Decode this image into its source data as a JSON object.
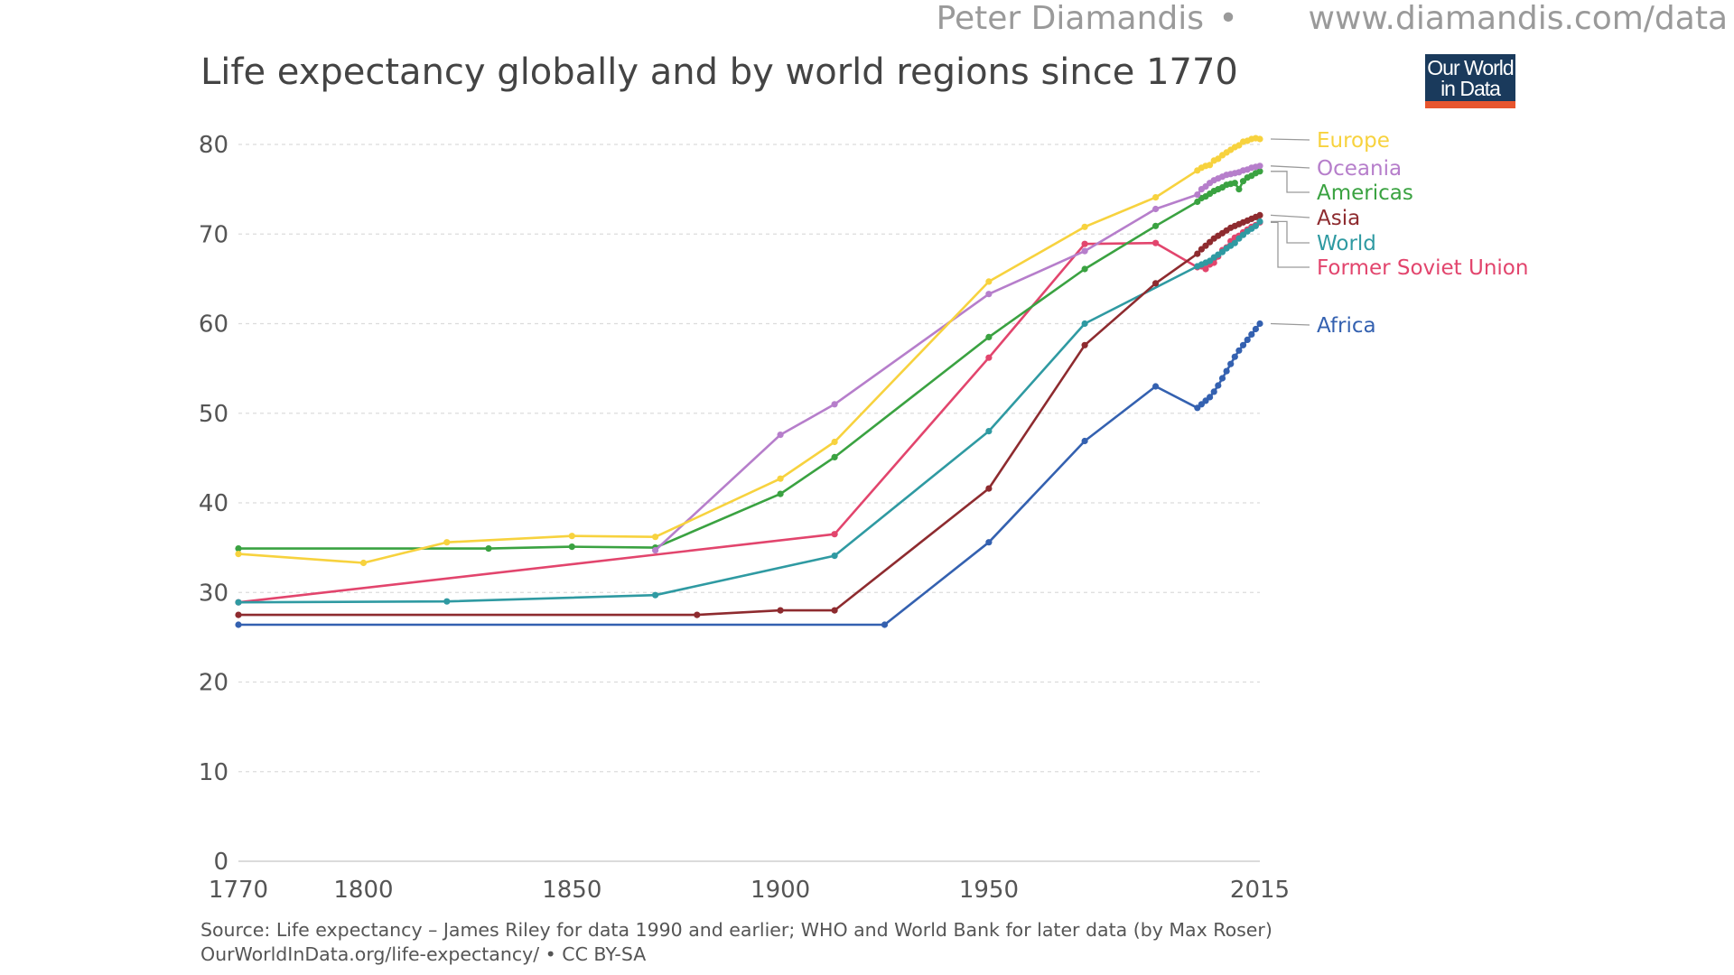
{
  "watermark": {
    "author": "Peter Diamandis",
    "separator": "•",
    "site": "www.diamandis.com/data"
  },
  "logo": {
    "line1": "Our World",
    "line2": "in Data",
    "bg_color": "#1a3a5c",
    "accent_color": "#e8552e"
  },
  "source": {
    "line1": "Source: Life expectancy – James Riley for data 1990 and earlier; WHO and World Bank for later data (by Max Roser)",
    "line2": "OurWorldInData.org/life-expectancy/ • CC BY-SA"
  },
  "chart_data": {
    "type": "line",
    "title": "Life expectancy globally and by world regions since 1770",
    "xlabel": "",
    "ylabel": "",
    "xlim": [
      1770,
      2015
    ],
    "ylim": [
      0,
      80
    ],
    "grid": "horizontal-dashed",
    "legend": "right, aligned with line ends",
    "x_ticks": [
      "1770",
      "1800",
      "1850",
      "1900",
      "1950",
      "2015"
    ],
    "y_ticks": [
      "0",
      "10",
      "20",
      "30",
      "40",
      "50",
      "60",
      "70",
      "80"
    ],
    "series": [
      {
        "name": "Europe",
        "color": "#f7d23e",
        "x": [
          1770,
          1800,
          1820,
          1850,
          1870,
          1900,
          1913,
          1950,
          1973,
          1990,
          2000,
          2001,
          2002,
          2003,
          2004,
          2005,
          2006,
          2007,
          2008,
          2009,
          2010,
          2011,
          2012,
          2013,
          2014,
          2015
        ],
        "y": [
          34.3,
          33.3,
          35.6,
          36.3,
          36.2,
          42.7,
          46.8,
          64.7,
          70.8,
          74.1,
          77.1,
          77.4,
          77.6,
          77.7,
          78.2,
          78.4,
          78.8,
          79.1,
          79.4,
          79.7,
          79.9,
          80.3,
          80.4,
          80.6,
          80.7,
          80.6
        ]
      },
      {
        "name": "Oceania",
        "color": "#b67ecb",
        "x": [
          1870,
          1900,
          1913,
          1950,
          1973,
          1990,
          2000,
          2001,
          2002,
          2003,
          2004,
          2005,
          2006,
          2007,
          2008,
          2009,
          2010,
          2011,
          2012,
          2013,
          2014,
          2015
        ],
        "y": [
          34.7,
          47.6,
          51.0,
          63.3,
          68.1,
          72.8,
          74.4,
          75.0,
          75.3,
          75.7,
          76.0,
          76.2,
          76.4,
          76.6,
          76.7,
          76.8,
          76.9,
          77.1,
          77.2,
          77.4,
          77.5,
          77.6
        ]
      },
      {
        "name": "Americas",
        "color": "#3aa241",
        "x": [
          1770,
          1830,
          1850,
          1870,
          1900,
          1913,
          1950,
          1973,
          1990,
          2000,
          2001,
          2002,
          2003,
          2004,
          2005,
          2006,
          2007,
          2008,
          2009,
          2010,
          2011,
          2012,
          2013,
          2014,
          2015
        ],
        "y": [
          34.9,
          34.9,
          35.1,
          35.0,
          41.0,
          45.1,
          58.5,
          66.1,
          70.9,
          73.6,
          74.0,
          74.2,
          74.5,
          74.8,
          75.0,
          75.2,
          75.5,
          75.6,
          75.7,
          75.0,
          75.9,
          76.3,
          76.5,
          76.8,
          77.0
        ]
      },
      {
        "name": "Asia",
        "color": "#8e2b2f",
        "x": [
          1770,
          1880,
          1900,
          1913,
          1950,
          1973,
          1990,
          2000,
          2001,
          2002,
          2003,
          2004,
          2005,
          2006,
          2007,
          2008,
          2009,
          2010,
          2011,
          2012,
          2013,
          2014,
          2015
        ],
        "y": [
          27.5,
          27.5,
          28.0,
          28.0,
          41.6,
          57.6,
          64.5,
          67.8,
          68.3,
          68.7,
          69.1,
          69.5,
          69.8,
          70.1,
          70.4,
          70.7,
          70.9,
          71.1,
          71.3,
          71.5,
          71.7,
          71.9,
          72.1
        ]
      },
      {
        "name": "World",
        "color": "#2f9aa2",
        "x": [
          1770,
          1820,
          1870,
          1913,
          1950,
          1973,
          2000,
          2001,
          2002,
          2003,
          2004,
          2005,
          2006,
          2007,
          2008,
          2009,
          2010,
          2011,
          2012,
          2013,
          2014,
          2015
        ],
        "y": [
          28.9,
          29.0,
          29.7,
          34.1,
          48.0,
          60.0,
          66.4,
          66.6,
          66.8,
          67.0,
          67.4,
          67.7,
          68.0,
          68.4,
          68.7,
          69.0,
          69.5,
          69.9,
          70.3,
          70.6,
          70.9,
          71.4
        ]
      },
      {
        "name": "Former Soviet Union",
        "color": "#e2456d",
        "x": [
          1770,
          1913,
          1950,
          1973,
          1990,
          2000,
          2001,
          2002,
          2003,
          2004,
          2005,
          2006,
          2007,
          2008,
          2009,
          2010,
          2011,
          2012,
          2013,
          2014,
          2015
        ],
        "y": [
          28.9,
          36.5,
          56.2,
          68.9,
          69.0,
          66.3,
          66.4,
          66.1,
          66.6,
          66.8,
          67.5,
          68.2,
          68.5,
          69.2,
          69.6,
          69.8,
          70.2,
          70.5,
          70.8,
          71.0,
          71.3
        ]
      },
      {
        "name": "Africa",
        "color": "#3461b0",
        "x": [
          1770,
          1925,
          1950,
          1973,
          1990,
          2000,
          2001,
          2002,
          2003,
          2004,
          2005,
          2006,
          2007,
          2008,
          2009,
          2010,
          2011,
          2012,
          2013,
          2014,
          2015
        ],
        "y": [
          26.4,
          26.4,
          35.6,
          46.9,
          53.0,
          50.6,
          51.0,
          51.4,
          51.8,
          52.4,
          53.1,
          53.9,
          54.7,
          55.5,
          56.3,
          57.0,
          57.6,
          58.2,
          58.8,
          59.4,
          60.0
        ]
      }
    ]
  }
}
